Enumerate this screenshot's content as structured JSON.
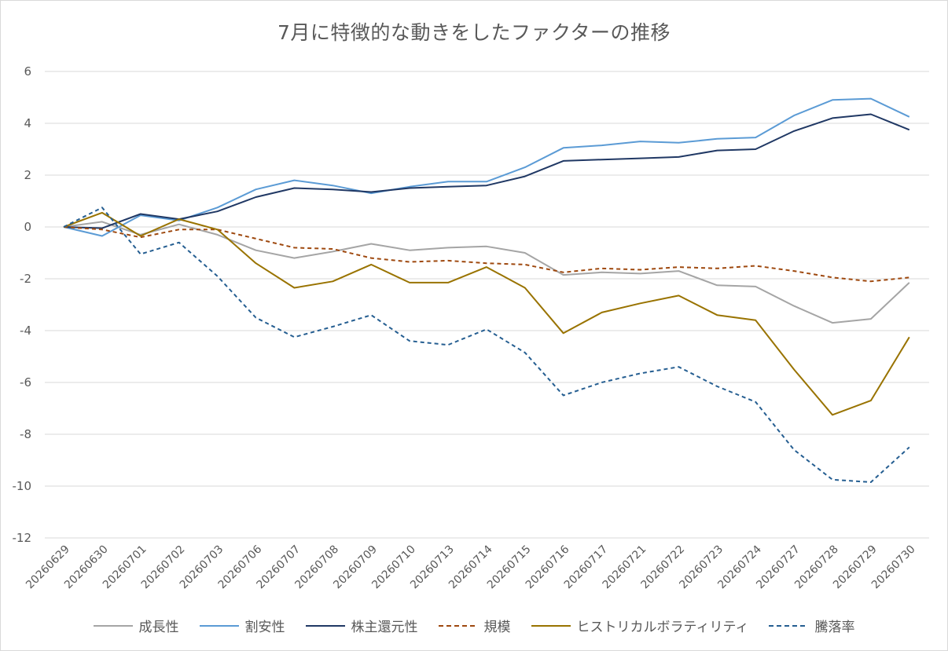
{
  "chart_data": {
    "type": "line",
    "title": "7月に特徴的な動きをしたファクターの推移",
    "xlabel": "",
    "ylabel": "",
    "ylim": [
      -12,
      6
    ],
    "yticks": [
      6,
      4,
      2,
      0,
      -2,
      -4,
      -6,
      -8,
      -10,
      -12
    ],
    "grid": "horizontal",
    "legend_position": "bottom",
    "categories": [
      "20260629",
      "20260630",
      "20260701",
      "20260702",
      "20260703",
      "20260706",
      "20260707",
      "20260708",
      "20260709",
      "20260710",
      "20260713",
      "20260714",
      "20260715",
      "20260716",
      "20260717",
      "20260721",
      "20260722",
      "20260723",
      "20260724",
      "20260727",
      "20260728",
      "20260729",
      "20260730"
    ],
    "series": [
      {
        "name": "成長性",
        "color": "#a5a5a5",
        "dash": false,
        "values": [
          0,
          0.2,
          -0.3,
          0.1,
          -0.3,
          -0.9,
          -1.2,
          -0.95,
          -0.65,
          -0.9,
          -0.8,
          -0.75,
          -1.0,
          -1.85,
          -1.75,
          -1.8,
          -1.7,
          -2.25,
          -2.3,
          -3.05,
          -3.7,
          -3.55,
          -2.15
        ]
      },
      {
        "name": "割安性",
        "color": "#5b9bd5",
        "dash": false,
        "values": [
          0,
          -0.35,
          0.45,
          0.25,
          0.75,
          1.45,
          1.8,
          1.6,
          1.3,
          1.55,
          1.75,
          1.75,
          2.3,
          3.05,
          3.15,
          3.3,
          3.25,
          3.4,
          3.45,
          4.3,
          4.9,
          4.95,
          4.25
        ]
      },
      {
        "name": "株主還元性",
        "color": "#203864",
        "dash": false,
        "values": [
          0,
          -0.05,
          0.5,
          0.3,
          0.6,
          1.15,
          1.5,
          1.45,
          1.35,
          1.5,
          1.55,
          1.6,
          1.95,
          2.55,
          2.6,
          2.65,
          2.7,
          2.95,
          3.0,
          3.7,
          4.2,
          4.35,
          3.75
        ]
      },
      {
        "name": "規模",
        "color": "#9e480e",
        "dash": true,
        "values": [
          0,
          -0.1,
          -0.4,
          -0.1,
          -0.1,
          -0.45,
          -0.8,
          -0.85,
          -1.2,
          -1.35,
          -1.3,
          -1.4,
          -1.45,
          -1.75,
          -1.6,
          -1.65,
          -1.55,
          -1.6,
          -1.5,
          -1.7,
          -1.95,
          -2.1,
          -1.95
        ]
      },
      {
        "name": "ヒストリカルボラティリティ",
        "color": "#997300",
        "dash": false,
        "values": [
          0,
          0.55,
          -0.35,
          0.3,
          -0.1,
          -1.4,
          -2.35,
          -2.1,
          -1.45,
          -2.15,
          -2.15,
          -1.55,
          -2.35,
          -4.1,
          -3.3,
          -2.95,
          -2.65,
          -3.4,
          -3.6,
          -5.5,
          -7.25,
          -6.7,
          -4.25
        ]
      },
      {
        "name": "騰落率",
        "color": "#255e91",
        "dash": true,
        "values": [
          0,
          0.75,
          -1.05,
          -0.6,
          -1.9,
          -3.5,
          -4.25,
          -3.85,
          -3.4,
          -4.4,
          -4.55,
          -3.95,
          -4.85,
          -6.5,
          -6.0,
          -5.65,
          -5.4,
          -6.15,
          -6.75,
          -8.6,
          -9.75,
          -9.85,
          -8.5
        ]
      }
    ]
  }
}
